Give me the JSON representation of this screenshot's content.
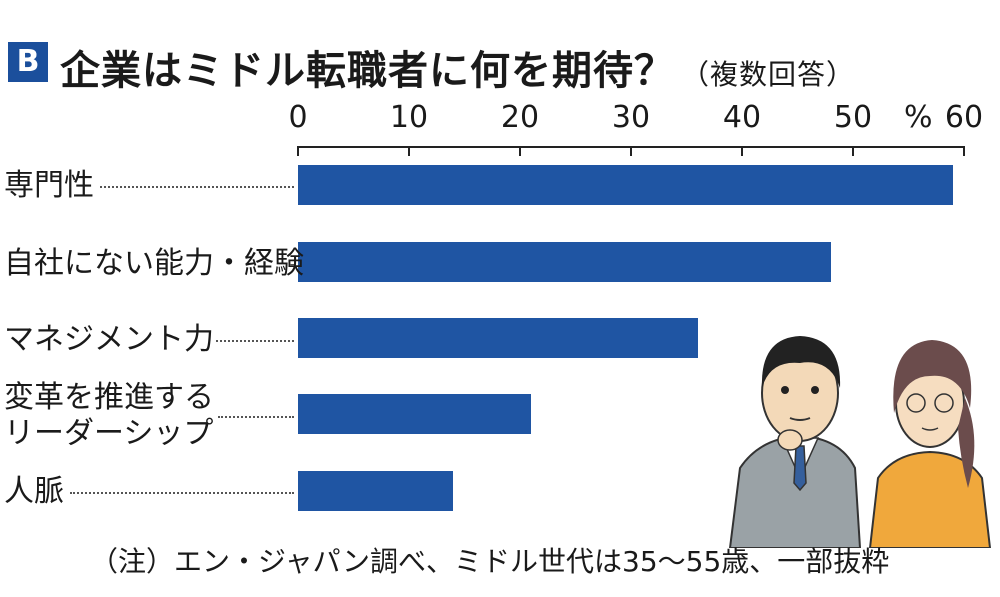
{
  "header": {
    "badge": "B",
    "title": "企業はミドル転職者に何を期待？",
    "subtitle": "（複数回答）"
  },
  "chart_data": {
    "type": "bar",
    "orientation": "horizontal",
    "categories": [
      "専門性",
      "自社にない能力・経験",
      "マネジメント力",
      "変革を推進する\nリーダーシップ",
      "人脈"
    ],
    "category_lines": [
      [
        "専門性"
      ],
      [
        "自社にない能力・経験"
      ],
      [
        "マネジメント力"
      ],
      [
        "変革を推進する",
        "リーダーシップ"
      ],
      [
        "人脈"
      ]
    ],
    "values": [
      59,
      48,
      36,
      21,
      14
    ],
    "xlim": [
      0,
      60
    ],
    "ticks": [
      "0",
      "10",
      "20",
      "30",
      "40",
      "50",
      "60"
    ],
    "unit_label": "%",
    "bar_color": "#1f55a3",
    "grid": false
  },
  "note": "（注）エン・ジャパン調べ、ミドル世代は35〜55歳、一部抜粋"
}
